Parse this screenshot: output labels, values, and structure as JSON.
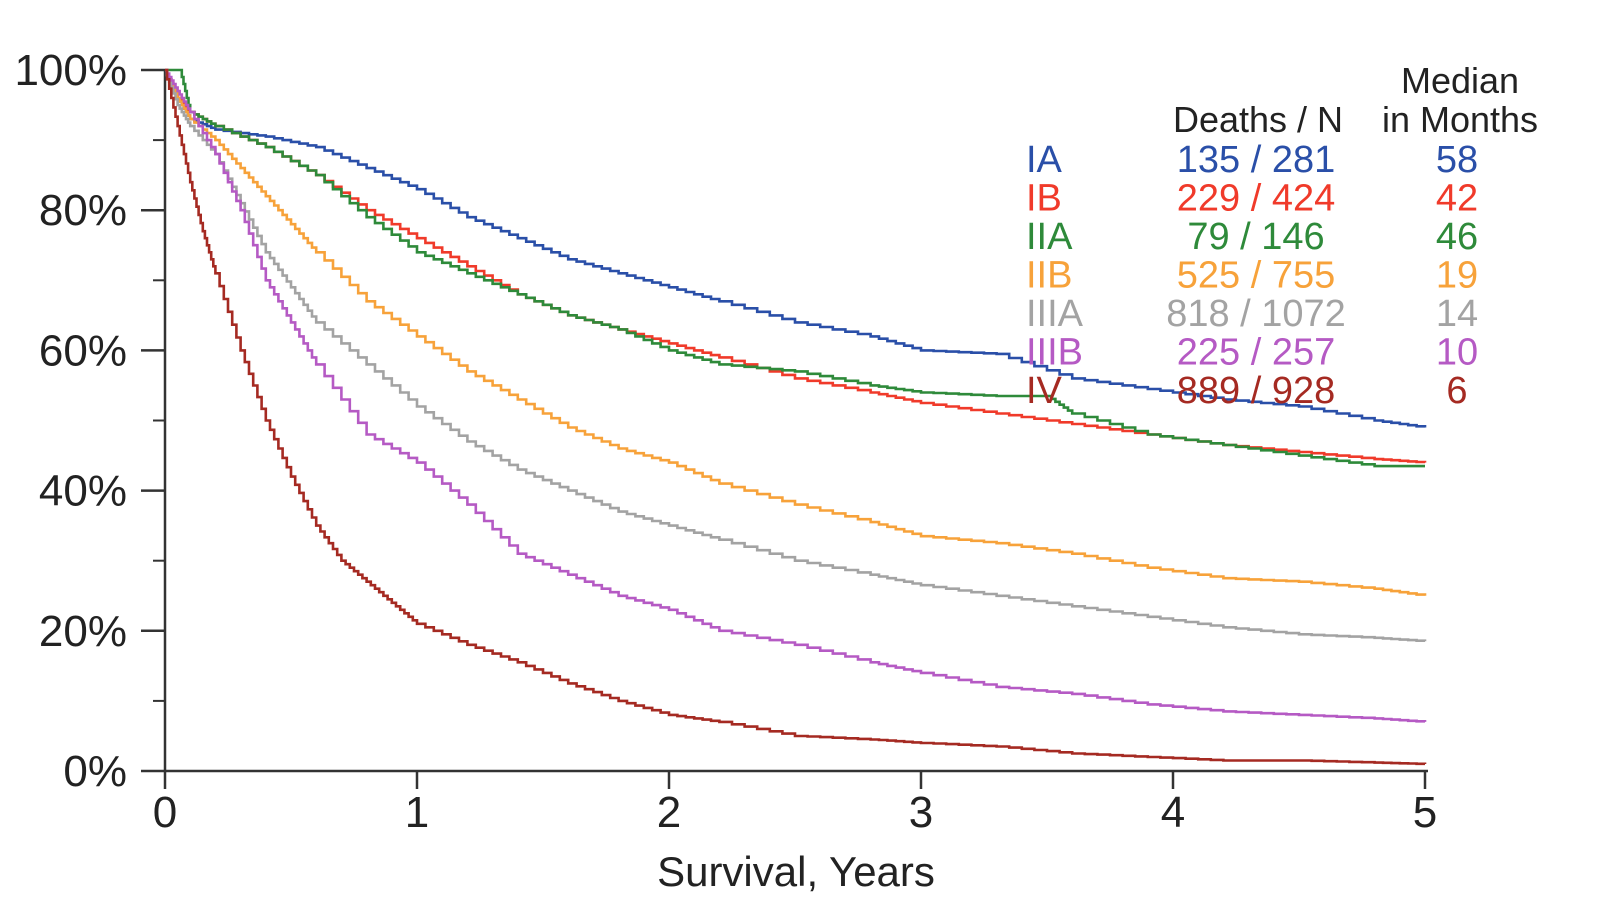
{
  "chart_data": {
    "type": "line",
    "title": "",
    "xlabel": "Survival, Years",
    "ylabel": "",
    "xlim": [
      0,
      5
    ],
    "ylim": [
      0,
      100
    ],
    "x_ticks": [
      "0",
      "1",
      "2",
      "3",
      "4",
      "5"
    ],
    "y_ticks": [
      "0%",
      "20%",
      "40%",
      "60%",
      "80%",
      "100%"
    ],
    "grid": false,
    "legend": {
      "placement": "top-right",
      "header_deaths": "Deaths / N",
      "header_median_line1": "Median",
      "header_median_line2": "in Months",
      "rows": [
        {
          "stage": "IA",
          "deaths_n": "135 / 281",
          "median": "58",
          "color": "#2a4fa8"
        },
        {
          "stage": "IB",
          "deaths_n": "229 / 424",
          "median": "42",
          "color": "#f03a2a"
        },
        {
          "stage": "IIA",
          "deaths_n": "79 / 146",
          "median": "46",
          "color": "#2e8a3a"
        },
        {
          "stage": "IIB",
          "deaths_n": "525 / 755",
          "median": "19",
          "color": "#f7a23a"
        },
        {
          "stage": "IIIA",
          "deaths_n": "818 / 1072",
          "median": "14",
          "color": "#a3a3a3"
        },
        {
          "stage": "IIIB",
          "deaths_n": "225 / 257",
          "median": "10",
          "color": "#b55ac4"
        },
        {
          "stage": "IV",
          "deaths_n": "889 / 928",
          "median": "6",
          "color": "#a52a22"
        }
      ]
    },
    "series": [
      {
        "name": "IA",
        "color": "#2a4fa8",
        "x": [
          0,
          0.05,
          0.1,
          0.2,
          0.4,
          0.6,
          0.8,
          1.0,
          1.2,
          1.4,
          1.6,
          1.8,
          2.0,
          2.2,
          2.5,
          2.8,
          3.0,
          3.3,
          3.6,
          3.9,
          4.2,
          4.5,
          4.8,
          5.0
        ],
        "y": [
          100,
          96,
          93,
          91.5,
          90.5,
          89,
          86,
          83,
          79,
          76,
          73,
          71,
          69,
          67,
          64,
          62,
          60,
          59.5,
          56,
          54.5,
          53,
          52,
          50,
          49
        ]
      },
      {
        "name": "IB",
        "color": "#f03a2a",
        "x": [
          0,
          0.05,
          0.1,
          0.2,
          0.4,
          0.6,
          0.8,
          1.0,
          1.2,
          1.4,
          1.6,
          1.8,
          2.0,
          2.2,
          2.5,
          2.8,
          3.0,
          3.3,
          3.6,
          3.9,
          4.2,
          4.5,
          4.8,
          5.0
        ],
        "y": [
          100,
          96,
          94,
          92,
          89,
          85,
          80,
          76,
          72,
          68,
          65,
          63,
          61,
          59,
          56,
          54,
          52.5,
          51,
          49.5,
          48,
          46.5,
          45.5,
          44.5,
          44
        ]
      },
      {
        "name": "IIA",
        "color": "#2e8a3a",
        "x": [
          0,
          0.03,
          0.06,
          0.1,
          0.2,
          0.4,
          0.6,
          0.8,
          1.0,
          1.2,
          1.4,
          1.6,
          1.8,
          2.0,
          2.2,
          2.5,
          2.8,
          3.0,
          3.3,
          3.5,
          3.6,
          3.9,
          4.2,
          4.5,
          4.8,
          5.0
        ],
        "y": [
          100,
          100,
          100,
          94,
          92,
          89,
          85,
          79,
          74,
          71,
          68,
          65,
          63,
          60,
          58,
          57,
          55,
          54,
          53.5,
          53.5,
          51,
          48,
          46.5,
          45,
          43.5,
          43.5
        ]
      },
      {
        "name": "IIB",
        "color": "#f7a23a",
        "x": [
          0,
          0.05,
          0.1,
          0.2,
          0.3,
          0.4,
          0.5,
          0.6,
          0.8,
          1.0,
          1.2,
          1.4,
          1.6,
          1.8,
          2.0,
          2.2,
          2.5,
          2.8,
          3.0,
          3.3,
          3.6,
          3.9,
          4.2,
          4.5,
          4.8,
          5.0
        ],
        "y": [
          100,
          96,
          93,
          90,
          86,
          82,
          78,
          74,
          67,
          62,
          57,
          53,
          49,
          46,
          44,
          41,
          38,
          35.5,
          33.5,
          32.5,
          31,
          29,
          27.5,
          27,
          26,
          25
        ]
      },
      {
        "name": "IIIA",
        "color": "#a3a3a3",
        "x": [
          0,
          0.05,
          0.1,
          0.2,
          0.3,
          0.4,
          0.5,
          0.6,
          0.8,
          1.0,
          1.2,
          1.4,
          1.6,
          1.8,
          2.0,
          2.2,
          2.5,
          2.8,
          3.0,
          3.3,
          3.6,
          3.9,
          4.2,
          4.5,
          4.8,
          5.0
        ],
        "y": [
          100,
          95,
          92,
          88,
          81,
          74,
          69,
          64,
          58,
          52,
          47,
          43,
          40,
          37,
          35,
          33,
          30,
          28,
          26.5,
          25,
          23.5,
          22,
          20.5,
          19.5,
          19,
          18.5
        ]
      },
      {
        "name": "IIIB",
        "color": "#b55ac4",
        "x": [
          0,
          0.05,
          0.1,
          0.2,
          0.3,
          0.4,
          0.5,
          0.6,
          0.8,
          1.0,
          1.2,
          1.4,
          1.6,
          1.8,
          2.0,
          2.2,
          2.5,
          2.8,
          3.0,
          3.3,
          3.6,
          3.9,
          4.2,
          4.5,
          4.8,
          5.0
        ],
        "y": [
          100,
          97,
          94,
          88,
          80,
          70,
          64,
          58,
          48,
          44,
          38,
          31,
          28,
          25,
          23,
          20,
          18,
          15.5,
          14,
          12,
          11,
          9.5,
          8.5,
          8,
          7.5,
          7
        ]
      },
      {
        "name": "IV",
        "color": "#a52a22",
        "x": [
          0,
          0.05,
          0.1,
          0.15,
          0.2,
          0.3,
          0.4,
          0.5,
          0.6,
          0.7,
          0.8,
          0.9,
          1.0,
          1.2,
          1.4,
          1.6,
          1.8,
          2.0,
          2.2,
          2.5,
          2.8,
          3.0,
          3.3,
          3.6,
          3.9,
          4.2,
          4.5,
          4.8,
          5.0
        ],
        "y": [
          100,
          92,
          84,
          77,
          71,
          60,
          50,
          42,
          35,
          30,
          27,
          24,
          21,
          18,
          15.5,
          12.5,
          10,
          8,
          7,
          5,
          4.5,
          4,
          3.5,
          2.5,
          2,
          1.5,
          1.5,
          1.2,
          1
        ]
      }
    ]
  }
}
